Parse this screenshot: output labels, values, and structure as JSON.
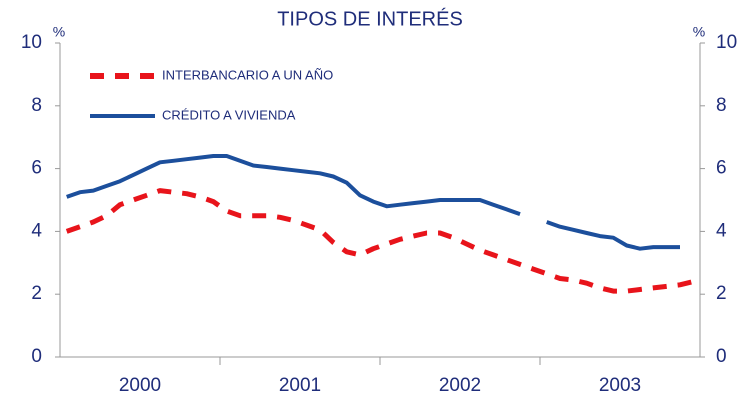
{
  "chart_data": {
    "type": "line",
    "title": "TIPOS DE INTERÉS",
    "y_label": "%",
    "y2_label": "%",
    "categories": [
      "2000",
      null,
      null,
      null,
      null,
      null,
      null,
      null,
      null,
      null,
      null,
      null,
      "2001",
      null,
      null,
      null,
      null,
      null,
      null,
      null,
      null,
      null,
      null,
      null,
      "2002",
      null,
      null,
      null,
      null,
      null,
      null,
      null,
      null,
      null,
      null,
      null,
      "2003",
      null,
      null,
      null,
      null,
      null,
      null,
      null,
      null,
      null,
      null,
      null
    ],
    "series": [
      {
        "name": "INTERBANCARIO A UN AÑO",
        "color": "#e8141b",
        "dashed": true,
        "values": [
          4.0,
          4.15,
          4.3,
          4.5,
          4.85,
          5.0,
          5.15,
          5.3,
          5.25,
          5.2,
          5.1,
          4.95,
          4.65,
          4.5,
          4.5,
          4.5,
          4.45,
          4.35,
          4.2,
          4.05,
          3.65,
          3.35,
          3.25,
          3.45,
          3.6,
          3.75,
          3.85,
          3.95,
          3.95,
          3.8,
          3.6,
          3.4,
          3.25,
          3.1,
          2.95,
          2.8,
          2.65,
          2.5,
          2.45,
          2.35,
          2.2,
          2.1,
          2.1,
          2.15,
          2.2,
          2.25,
          2.3,
          2.4
        ]
      },
      {
        "name": "CRÉDITO A VIVIENDA",
        "color": "#1c4f9c",
        "dashed": false,
        "values": [
          5.1,
          5.25,
          5.3,
          5.45,
          5.6,
          5.8,
          6.0,
          6.2,
          6.25,
          6.3,
          6.35,
          6.4,
          6.4,
          6.25,
          6.1,
          6.05,
          6.0,
          5.95,
          5.9,
          5.85,
          5.75,
          5.55,
          5.15,
          4.95,
          4.8,
          4.85,
          4.9,
          4.95,
          5.0,
          5.0,
          5.0,
          5.0,
          4.85,
          4.7,
          4.55,
          null,
          4.3,
          4.15,
          4.05,
          3.95,
          3.85,
          3.8,
          3.55,
          3.45,
          3.5,
          3.5,
          3.5,
          null
        ]
      }
    ],
    "ylim": [
      0,
      10
    ],
    "yticks": [
      0,
      2,
      4,
      6,
      8,
      10
    ],
    "y2lim": [
      0,
      10
    ],
    "y2ticks": [
      0,
      2,
      4,
      6,
      8,
      10
    ],
    "legend": "upper left",
    "grid": false
  }
}
